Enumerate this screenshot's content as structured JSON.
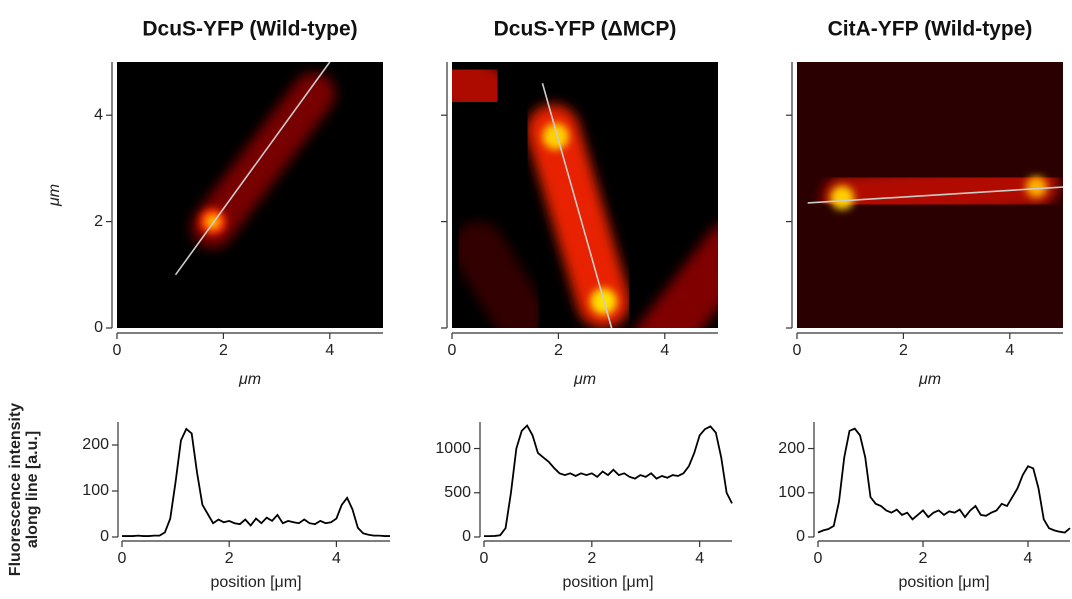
{
  "chart_data": [
    {
      "type": "image",
      "title": "DcuS-YFP (Wild-type)",
      "xlabel": "μm",
      "ylabel": "μm",
      "xlim": [
        0,
        5
      ],
      "ylim": [
        0,
        5
      ],
      "xticks": [
        0,
        2,
        4
      ],
      "yticks": [
        0,
        2,
        4
      ],
      "show_ytick_labels": true,
      "background": "#000000",
      "line": {
        "x": [
          1.1,
          4.0
        ],
        "y": [
          1.0,
          5.0
        ]
      }
    },
    {
      "type": "image",
      "title": "DcuS-YFP (ΔMCP)",
      "xlabel": "μm",
      "xlim": [
        0,
        5
      ],
      "ylim": [
        0,
        5
      ],
      "xticks": [
        0,
        2,
        4
      ],
      "yticks": [
        0,
        2,
        4
      ],
      "show_ytick_labels": false,
      "background": "#000000",
      "line": {
        "x": [
          1.7,
          3.0
        ],
        "y": [
          4.6,
          0
        ]
      }
    },
    {
      "type": "image",
      "title": "CitA-YFP (Wild-type)",
      "xlabel": "μm",
      "xlim": [
        0,
        5
      ],
      "ylim": [
        0,
        5
      ],
      "xticks": [
        0,
        2,
        4
      ],
      "yticks": [
        0,
        2,
        4
      ],
      "show_ytick_labels": false,
      "background": "#2a0000",
      "line": {
        "x": [
          0.2,
          5.0
        ],
        "y": [
          2.35,
          2.65
        ]
      }
    },
    {
      "type": "line",
      "xlabel": "position  [μm]",
      "ylabel": [
        "Fluorescence intensity",
        "along line [a.u.]"
      ],
      "xlim": [
        0,
        5
      ],
      "ylim": [
        0,
        250
      ],
      "xticks": [
        0,
        2,
        4
      ],
      "yticks": [
        0,
        100,
        200
      ],
      "color": "#000000",
      "x": [
        0,
        0.1,
        0.2,
        0.3,
        0.4,
        0.5,
        0.6,
        0.7,
        0.8,
        0.9,
        1.0,
        1.1,
        1.2,
        1.3,
        1.4,
        1.5,
        1.6,
        1.7,
        1.8,
        1.9,
        2.0,
        2.1,
        2.2,
        2.3,
        2.4,
        2.5,
        2.6,
        2.7,
        2.8,
        2.9,
        3.0,
        3.1,
        3.2,
        3.3,
        3.4,
        3.5,
        3.6,
        3.7,
        3.8,
        3.9,
        4.0,
        4.1,
        4.2,
        4.3,
        4.4,
        4.5,
        4.6,
        4.7,
        4.8,
        4.9,
        5.0
      ],
      "values": [
        2,
        2,
        2,
        3,
        2,
        2,
        3,
        3,
        10,
        40,
        120,
        210,
        235,
        225,
        140,
        70,
        50,
        30,
        38,
        32,
        35,
        30,
        28,
        38,
        25,
        40,
        30,
        42,
        35,
        48,
        30,
        35,
        32,
        30,
        38,
        30,
        28,
        35,
        30,
        32,
        40,
        70,
        85,
        60,
        20,
        8,
        5,
        3,
        3,
        2,
        2
      ]
    },
    {
      "type": "line",
      "xlabel": "position  [μm]",
      "xlim": [
        0,
        4.6
      ],
      "ylim": [
        0,
        1300
      ],
      "xticks": [
        0,
        2,
        4
      ],
      "yticks": [
        0,
        500,
        1000
      ],
      "color": "#000000",
      "x": [
        0,
        0.1,
        0.2,
        0.3,
        0.4,
        0.5,
        0.6,
        0.7,
        0.8,
        0.9,
        1.0,
        1.1,
        1.2,
        1.3,
        1.4,
        1.5,
        1.6,
        1.7,
        1.8,
        1.9,
        2.0,
        2.1,
        2.2,
        2.3,
        2.4,
        2.5,
        2.6,
        2.7,
        2.8,
        2.9,
        3.0,
        3.1,
        3.2,
        3.3,
        3.4,
        3.5,
        3.6,
        3.7,
        3.8,
        3.9,
        4.0,
        4.1,
        4.2,
        4.3,
        4.4,
        4.5,
        4.6
      ],
      "values": [
        10,
        10,
        12,
        20,
        100,
        500,
        1000,
        1200,
        1260,
        1150,
        950,
        900,
        850,
        780,
        720,
        700,
        720,
        690,
        720,
        700,
        720,
        680,
        740,
        700,
        760,
        700,
        720,
        680,
        660,
        700,
        680,
        720,
        660,
        690,
        670,
        700,
        690,
        720,
        800,
        950,
        1150,
        1220,
        1250,
        1180,
        900,
        500,
        380
      ]
    },
    {
      "type": "line",
      "xlabel": "position  [μm]",
      "xlim": [
        0,
        4.8
      ],
      "ylim": [
        0,
        260
      ],
      "xticks": [
        0,
        2,
        4
      ],
      "yticks": [
        0,
        100,
        200
      ],
      "color": "#000000",
      "x": [
        0,
        0.1,
        0.2,
        0.3,
        0.4,
        0.5,
        0.6,
        0.7,
        0.8,
        0.9,
        1.0,
        1.1,
        1.2,
        1.3,
        1.4,
        1.5,
        1.6,
        1.7,
        1.8,
        1.9,
        2.0,
        2.1,
        2.2,
        2.3,
        2.4,
        2.5,
        2.6,
        2.7,
        2.8,
        2.9,
        3.0,
        3.1,
        3.2,
        3.3,
        3.4,
        3.5,
        3.6,
        3.7,
        3.8,
        3.9,
        4.0,
        4.1,
        4.2,
        4.3,
        4.4,
        4.5,
        4.6,
        4.7,
        4.8
      ],
      "values": [
        10,
        15,
        18,
        25,
        80,
        180,
        240,
        245,
        230,
        180,
        90,
        75,
        70,
        60,
        55,
        62,
        50,
        55,
        40,
        50,
        60,
        45,
        55,
        60,
        50,
        58,
        55,
        62,
        45,
        60,
        70,
        50,
        48,
        55,
        60,
        75,
        70,
        90,
        110,
        140,
        160,
        155,
        110,
        40,
        20,
        15,
        12,
        10,
        20
      ]
    }
  ]
}
